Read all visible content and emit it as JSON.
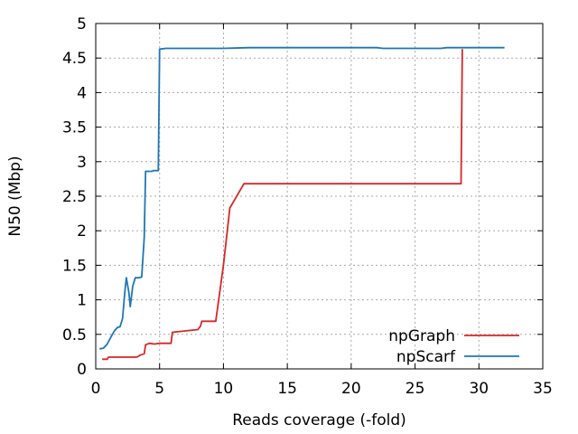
{
  "chart_data": {
    "type": "line",
    "title": "",
    "xlabel": "Reads coverage (-fold)",
    "ylabel": "N50 (Mbp)",
    "xlim": [
      0,
      35
    ],
    "ylim": [
      0,
      5
    ],
    "xticks": [
      0,
      5,
      10,
      15,
      20,
      25,
      30,
      35
    ],
    "yticks": [
      0,
      0.5,
      1,
      1.5,
      2,
      2.5,
      3,
      3.5,
      4,
      4.5,
      5
    ],
    "xtick_labels": [
      "0",
      "5",
      "10",
      "15",
      "20",
      "25",
      "30",
      "35"
    ],
    "ytick_labels": [
      "0",
      "0.5",
      "1",
      "1.5",
      "2",
      "2.5",
      "3",
      "3.5",
      "4",
      "4.5",
      "5"
    ],
    "grid": true,
    "legend_position": "bottom-right",
    "series": [
      {
        "name": "npGraph",
        "color": "#d62728",
        "points": [
          [
            0.5,
            0.14
          ],
          [
            0.9,
            0.14
          ],
          [
            1.0,
            0.17
          ],
          [
            3.2,
            0.17
          ],
          [
            3.5,
            0.2
          ],
          [
            3.8,
            0.22
          ],
          [
            3.9,
            0.35
          ],
          [
            4.2,
            0.37
          ],
          [
            4.6,
            0.36
          ],
          [
            5.0,
            0.37
          ],
          [
            5.9,
            0.37
          ],
          [
            6.0,
            0.53
          ],
          [
            7.0,
            0.55
          ],
          [
            8.0,
            0.57
          ],
          [
            8.2,
            0.62
          ],
          [
            8.3,
            0.69
          ],
          [
            9.4,
            0.69
          ],
          [
            10.0,
            1.5
          ],
          [
            10.5,
            2.33
          ],
          [
            11.6,
            2.68
          ],
          [
            28.6,
            2.68
          ],
          [
            28.7,
            4.63
          ]
        ]
      },
      {
        "name": "npScarf",
        "color": "#1f77b4",
        "points": [
          [
            0.3,
            0.29
          ],
          [
            0.6,
            0.3
          ],
          [
            0.9,
            0.36
          ],
          [
            1.3,
            0.5
          ],
          [
            1.5,
            0.56
          ],
          [
            1.7,
            0.6
          ],
          [
            1.9,
            0.61
          ],
          [
            2.1,
            0.73
          ],
          [
            2.3,
            1.15
          ],
          [
            2.4,
            1.32
          ],
          [
            2.6,
            1.1
          ],
          [
            2.7,
            0.9
          ],
          [
            2.9,
            1.2
          ],
          [
            3.1,
            1.32
          ],
          [
            3.4,
            1.32
          ],
          [
            3.6,
            1.33
          ],
          [
            3.8,
            1.9
          ],
          [
            3.9,
            2.86
          ],
          [
            4.4,
            2.86
          ],
          [
            4.5,
            2.87
          ],
          [
            4.9,
            2.87
          ],
          [
            5.0,
            4.63
          ],
          [
            5.5,
            4.64
          ],
          [
            6.0,
            4.64
          ],
          [
            10.0,
            4.64
          ],
          [
            12.0,
            4.65
          ],
          [
            22.0,
            4.65
          ],
          [
            22.5,
            4.64
          ],
          [
            27.0,
            4.64
          ],
          [
            27.5,
            4.65
          ],
          [
            32.0,
            4.65
          ]
        ]
      }
    ]
  }
}
